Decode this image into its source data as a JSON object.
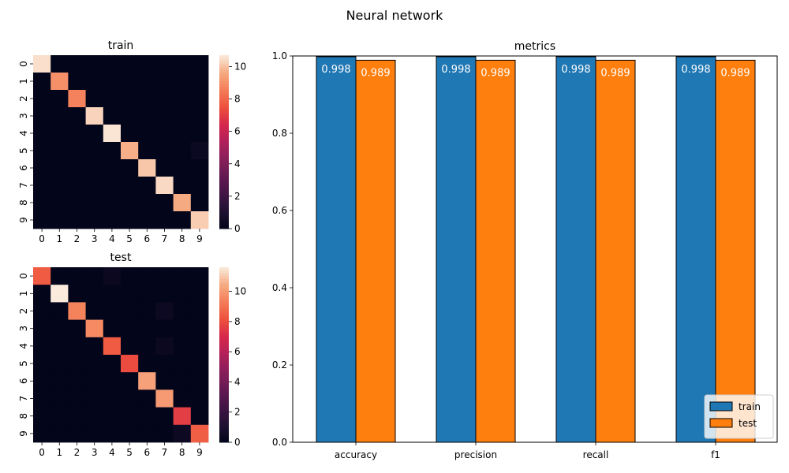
{
  "figure": {
    "suptitle": "Neural network"
  },
  "chart_data": [
    {
      "type": "heatmap",
      "title": "train",
      "row_labels": [
        "0",
        "1",
        "2",
        "3",
        "4",
        "5",
        "6",
        "7",
        "8",
        "9"
      ],
      "col_labels": [
        "0",
        "1",
        "2",
        "3",
        "4",
        "5",
        "6",
        "7",
        "8",
        "9"
      ],
      "values": [
        [
          10.5,
          0,
          0,
          0,
          0,
          0,
          0,
          0,
          0,
          0
        ],
        [
          0,
          9.0,
          0,
          0,
          0,
          0,
          0,
          0,
          0,
          0
        ],
        [
          0,
          0,
          8.7,
          0,
          0,
          0,
          0,
          0,
          0,
          0
        ],
        [
          0,
          0,
          0,
          10.3,
          0,
          0,
          0,
          0,
          0,
          0
        ],
        [
          0,
          0,
          0,
          0,
          10.6,
          0,
          0,
          0,
          0,
          0
        ],
        [
          0,
          0,
          0,
          0,
          0,
          9.7,
          0,
          0,
          0,
          0.3
        ],
        [
          0,
          0,
          0,
          0,
          0,
          0,
          10.1,
          0,
          0,
          0
        ],
        [
          0,
          0,
          0,
          0,
          0,
          0,
          0,
          10.4,
          0,
          0
        ],
        [
          0,
          0,
          0,
          0,
          0,
          0,
          0,
          0,
          9.6,
          0
        ],
        [
          0,
          0,
          0,
          0,
          0,
          0,
          0,
          0,
          0,
          10.2
        ]
      ],
      "colorbar": {
        "min": 0,
        "max": 10.7,
        "ticks": [
          "0",
          "2",
          "4",
          "6",
          "8",
          "10"
        ]
      }
    },
    {
      "type": "heatmap",
      "title": "test",
      "row_labels": [
        "0",
        "1",
        "2",
        "3",
        "4",
        "5",
        "6",
        "7",
        "8",
        "9"
      ],
      "col_labels": [
        "0",
        "1",
        "2",
        "3",
        "4",
        "5",
        "6",
        "7",
        "8",
        "9"
      ],
      "values": [
        [
          8.4,
          0,
          0,
          0,
          0.3,
          0,
          0,
          0,
          0,
          0
        ],
        [
          0,
          11.6,
          0,
          0,
          0,
          0,
          0,
          0,
          0,
          0
        ],
        [
          0,
          0,
          9.4,
          0,
          0,
          0,
          0,
          0.4,
          0,
          0
        ],
        [
          0,
          0,
          0,
          9.6,
          0,
          0,
          0,
          0,
          0,
          0
        ],
        [
          0,
          0,
          0,
          0,
          8.4,
          0,
          0,
          0.3,
          0,
          0
        ],
        [
          0,
          0,
          0,
          0,
          0,
          8.0,
          0,
          0,
          0,
          0
        ],
        [
          0,
          0,
          0,
          0,
          0,
          0,
          10.2,
          0,
          0,
          0
        ],
        [
          0,
          0,
          0,
          0,
          0,
          0,
          0,
          10.0,
          0,
          0
        ],
        [
          0,
          0,
          0,
          0,
          0,
          0,
          0,
          0,
          7.6,
          0
        ],
        [
          0,
          0,
          0,
          0,
          0,
          0,
          0,
          0,
          0.4,
          8.5
        ]
      ],
      "colorbar": {
        "min": 0,
        "max": 11.6,
        "ticks": [
          "0",
          "2",
          "4",
          "6",
          "8",
          "10"
        ]
      }
    },
    {
      "type": "bar",
      "title": "metrics",
      "categories": [
        "accuracy",
        "precision",
        "recall",
        "f1"
      ],
      "series": [
        {
          "name": "train",
          "values": [
            0.998,
            0.998,
            0.998,
            0.998
          ],
          "labels": [
            "0.998",
            "0.998",
            "0.998",
            "0.998"
          ],
          "color": "#1f77b4"
        },
        {
          "name": "test",
          "values": [
            0.989,
            0.989,
            0.989,
            0.989
          ],
          "labels": [
            "0.989",
            "0.989",
            "0.989",
            "0.989"
          ],
          "color": "#ff7f0e"
        }
      ],
      "ylim": [
        0,
        1.0
      ],
      "yticks": [
        0,
        0.2,
        0.4,
        0.6,
        0.8,
        1.0
      ],
      "ytick_labels": [
        "0.0",
        "0.2",
        "0.4",
        "0.6",
        "0.8",
        "1.0"
      ],
      "legend": {
        "placement": "lower-right"
      },
      "grid": false
    }
  ]
}
